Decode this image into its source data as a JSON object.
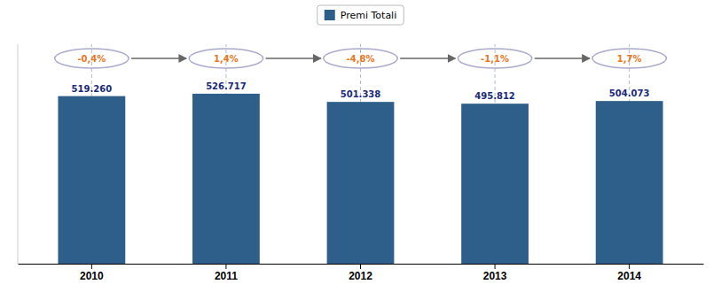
{
  "chart_data": {
    "type": "bar",
    "categories": [
      "2010",
      "2011",
      "2012",
      "2013",
      "2014"
    ],
    "series": [
      {
        "name": "Premi Totali",
        "color": "#2e5f8a",
        "values": [
          519260,
          526717,
          501338,
          495812,
          504073
        ],
        "value_labels": [
          "519.260",
          "526.717",
          "501.338",
          "495.812",
          "504.073"
        ]
      }
    ],
    "annotations": [
      "-0,4%",
      "1,4%",
      "-4,8%",
      "-1,1%",
      "1,7%"
    ],
    "ylim": [
      0,
      680000
    ],
    "grid": true,
    "legend": "top",
    "data_labels": true,
    "tick_labels": "x"
  }
}
